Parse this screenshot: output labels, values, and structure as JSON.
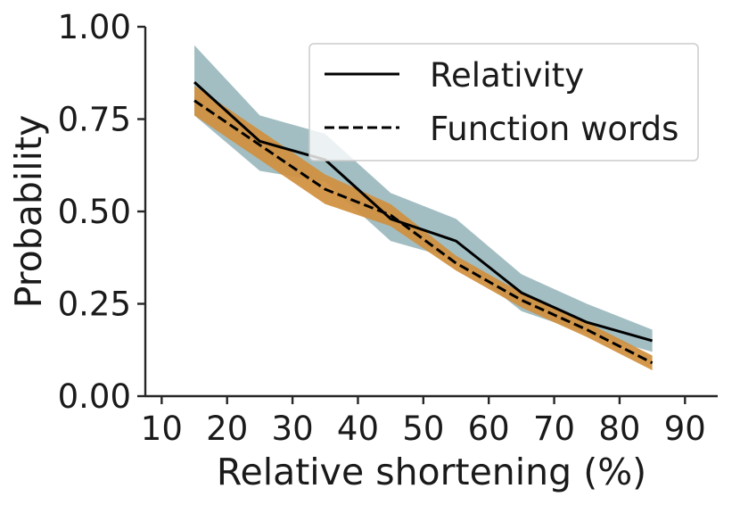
{
  "chart_data": {
    "type": "line",
    "title": "",
    "xlabel": "Relative shortening (%)",
    "ylabel": "Probability",
    "xlim": [
      7.5,
      95
    ],
    "ylim": [
      0,
      1
    ],
    "xticks": [
      10,
      20,
      30,
      40,
      50,
      60,
      70,
      80,
      90
    ],
    "yticks": [
      "0.00",
      "0.25",
      "0.50",
      "0.75",
      "1.00"
    ],
    "grid": false,
    "legend_position": "top-right",
    "x": [
      15,
      25,
      35,
      45,
      55,
      65,
      75,
      85
    ],
    "series": [
      {
        "name": "Relativity",
        "style": "solid",
        "color": "#000000",
        "band_color": "#9ab8bd",
        "values": [
          0.85,
          0.69,
          0.64,
          0.48,
          0.42,
          0.28,
          0.2,
          0.15
        ],
        "lower": [
          0.76,
          0.61,
          0.58,
          0.42,
          0.37,
          0.23,
          0.17,
          0.12
        ],
        "upper": [
          0.95,
          0.76,
          0.71,
          0.55,
          0.48,
          0.33,
          0.25,
          0.18
        ]
      },
      {
        "name": "Function words",
        "style": "dashed",
        "color": "#000000",
        "band_color": "#d08f3e",
        "values": [
          0.8,
          0.68,
          0.56,
          0.49,
          0.36,
          0.26,
          0.18,
          0.09
        ],
        "lower": [
          0.76,
          0.64,
          0.52,
          0.46,
          0.34,
          0.24,
          0.16,
          0.07
        ],
        "upper": [
          0.84,
          0.72,
          0.6,
          0.52,
          0.38,
          0.28,
          0.2,
          0.11
        ]
      }
    ]
  }
}
